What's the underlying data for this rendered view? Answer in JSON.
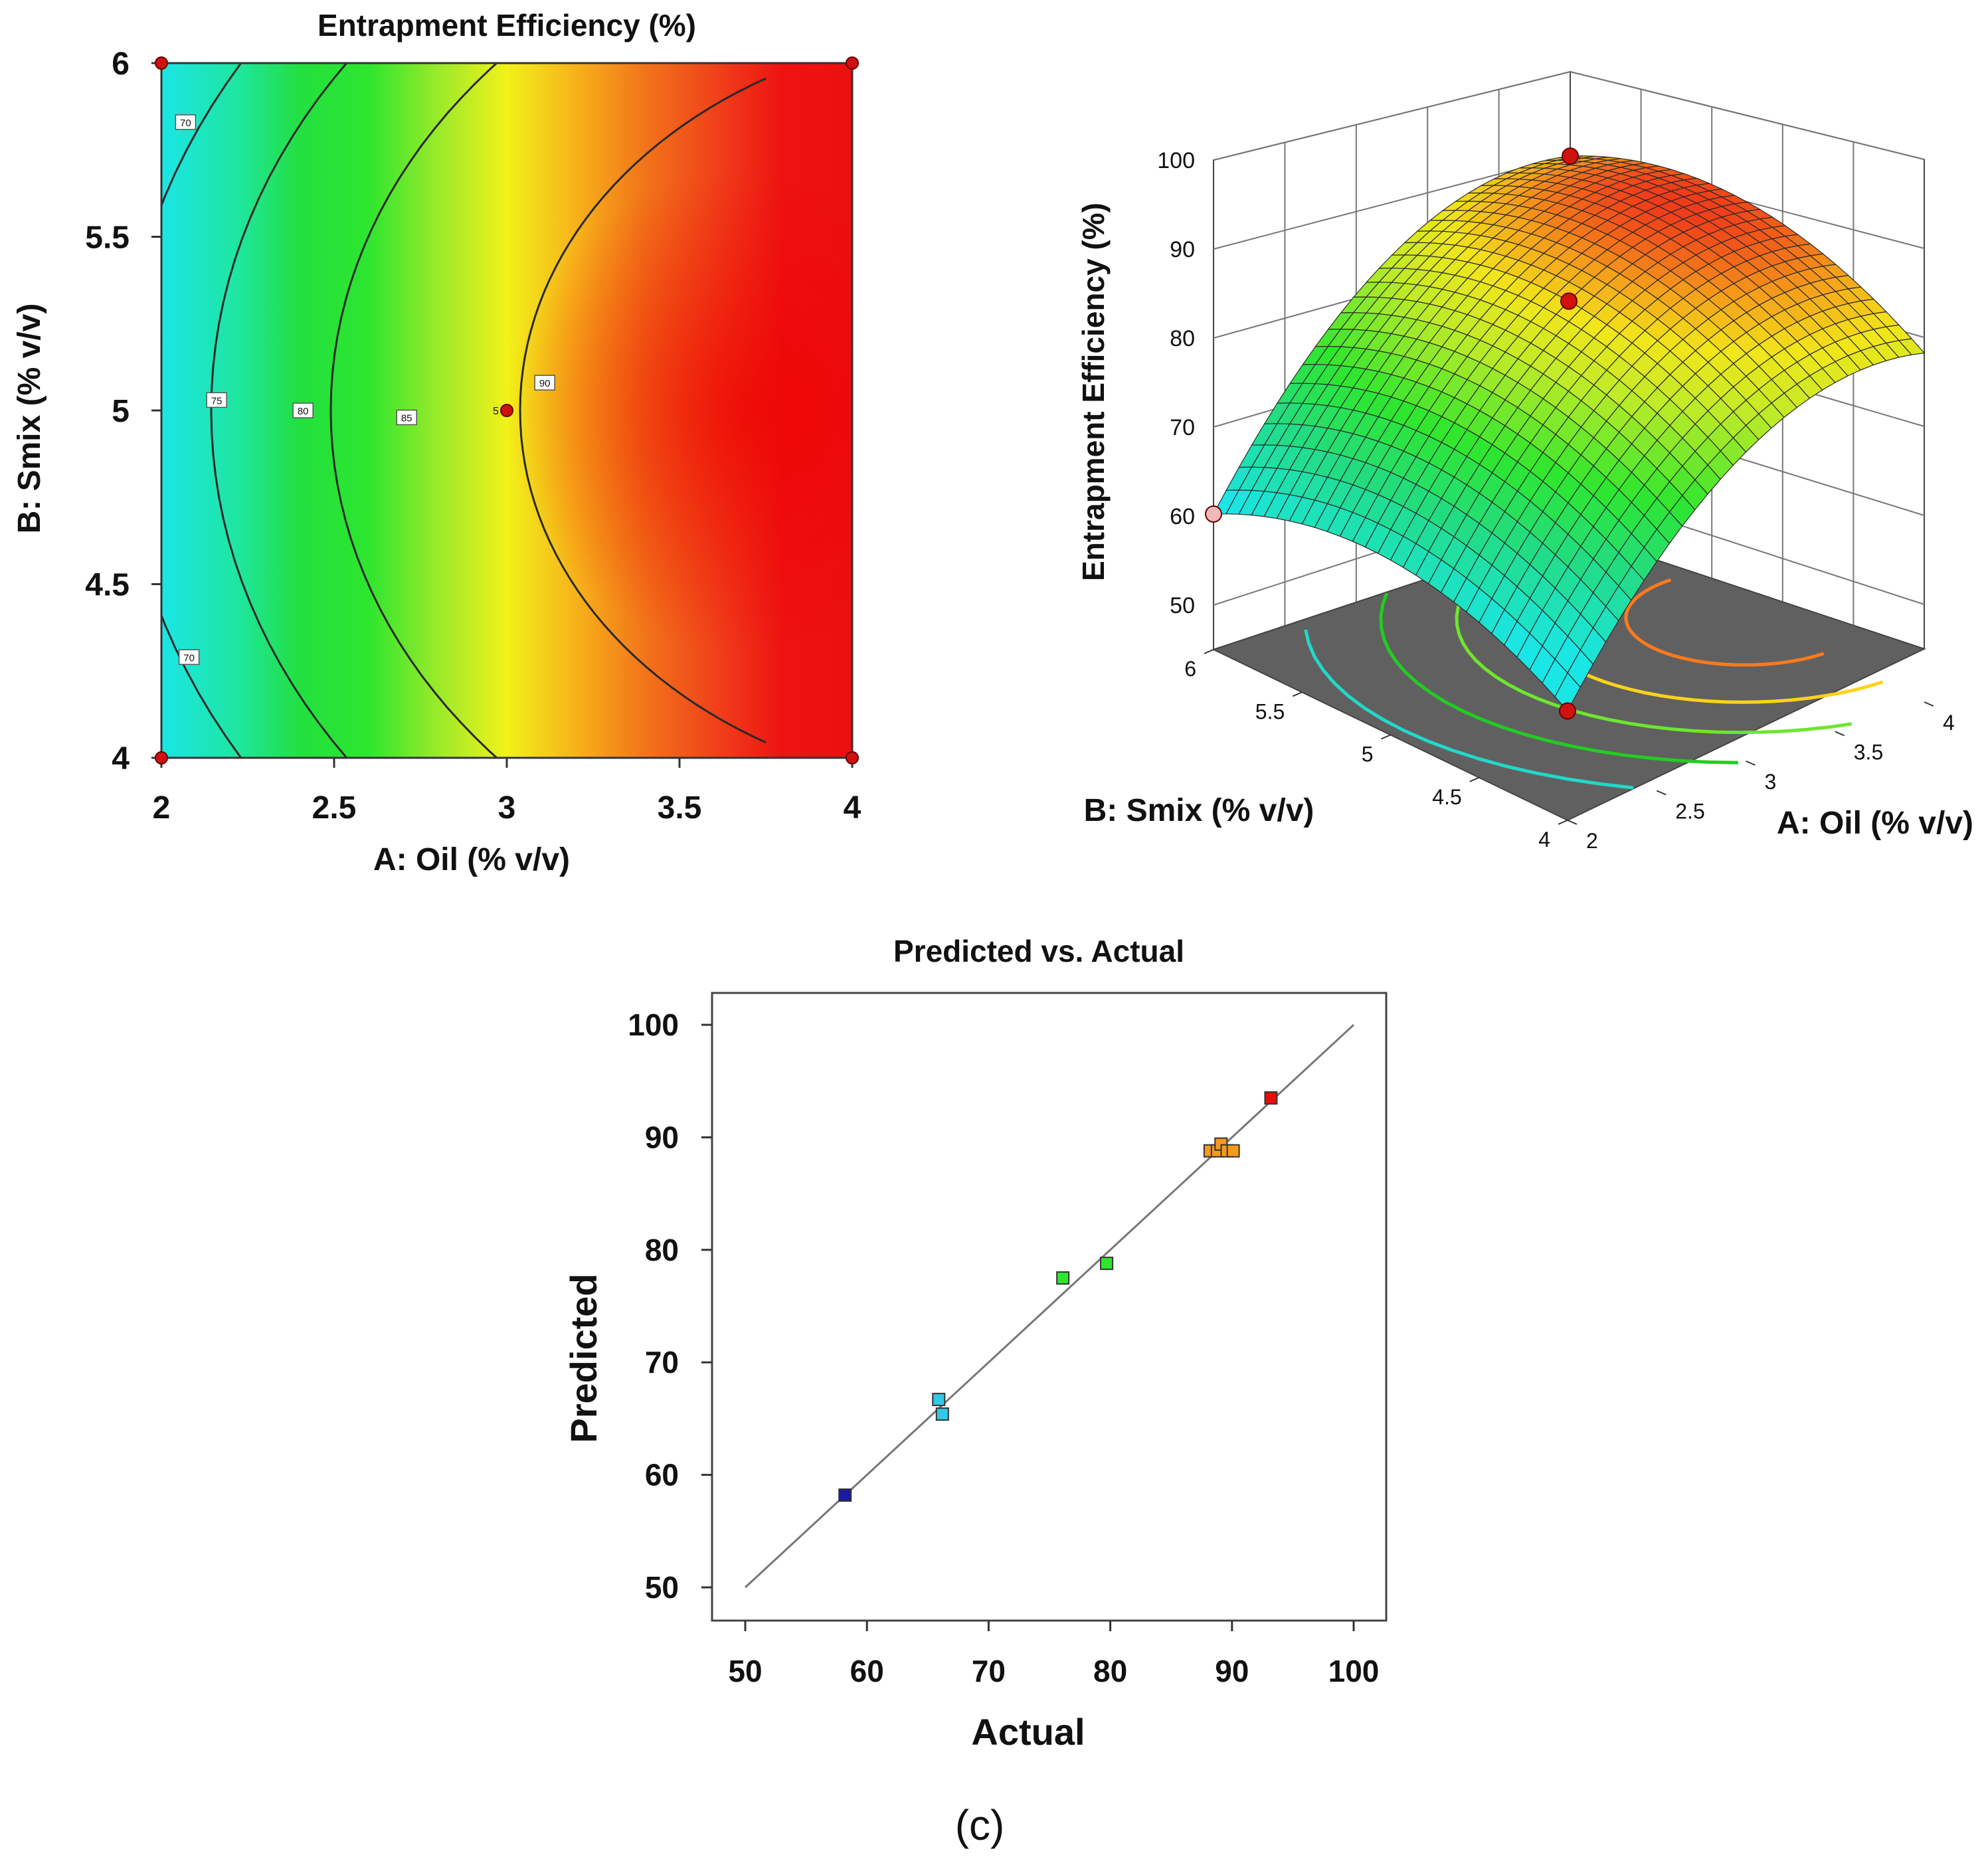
{
  "chart_data": [
    {
      "type": "contour",
      "title": "Entrapment Efficiency (%)",
      "xlabel": "A: Oil (% v/v)",
      "ylabel": "B: Smix (% v/v)",
      "xlim": [
        2,
        4
      ],
      "ylim": [
        4,
        6
      ],
      "xticks": [
        "2",
        "2.5",
        "3",
        "3.5",
        "4"
      ],
      "yticks": [
        "4",
        "4.5",
        "5",
        "5.5",
        "6"
      ],
      "contour_labels": [
        {
          "text": "70",
          "x": 2.07,
          "y": 5.83
        },
        {
          "text": "75",
          "x": 2.16,
          "y": 5.03
        },
        {
          "text": "80",
          "x": 2.41,
          "y": 5.0
        },
        {
          "text": "85",
          "x": 2.71,
          "y": 4.98
        },
        {
          "text": "90",
          "x": 3.11,
          "y": 5.08
        },
        {
          "text": "70",
          "x": 2.08,
          "y": 4.29
        }
      ],
      "center_point": {
        "x": 3.0,
        "y": 5.0,
        "label": "5"
      },
      "design_points": [
        {
          "x": 2,
          "y": 6
        },
        {
          "x": 4,
          "y": 6
        },
        {
          "x": 2,
          "y": 4
        },
        {
          "x": 4,
          "y": 4
        },
        {
          "x": 3,
          "y": 5
        }
      ]
    },
    {
      "type": "surface",
      "zlabel": "Entrapment Efficiency (%)",
      "xlabel": "A: Oil (% v/v)",
      "ylabel": "B: Smix (% v/v)",
      "zticks": [
        "50",
        "60",
        "70",
        "80",
        "90",
        "100"
      ],
      "xticks": [
        "2",
        "2.5",
        "3",
        "3.5",
        "4"
      ],
      "yticks": [
        "4",
        "4.5",
        "5",
        "5.5",
        "6"
      ],
      "zlim": [
        45,
        100
      ]
    },
    {
      "type": "scatter",
      "title": "Predicted vs. Actual",
      "xlabel": "Actual",
      "ylabel": "Predicted",
      "xlim": [
        50,
        100
      ],
      "ylim": [
        50,
        100
      ],
      "xticks": [
        "50",
        "60",
        "70",
        "80",
        "90",
        "100"
      ],
      "yticks": [
        "50",
        "60",
        "70",
        "80",
        "90",
        "100"
      ],
      "reference_line": [
        [
          50,
          50
        ],
        [
          100,
          100
        ]
      ],
      "points": [
        {
          "actual": 58.2,
          "predicted": 58.2,
          "color": "#1a1aa6"
        },
        {
          "actual": 65.9,
          "predicted": 66.7,
          "color": "#33c8e6"
        },
        {
          "actual": 66.2,
          "predicted": 65.4,
          "color": "#33c8e6"
        },
        {
          "actual": 76.1,
          "predicted": 77.5,
          "color": "#2ee62e"
        },
        {
          "actual": 79.7,
          "predicted": 78.8,
          "color": "#2ee62e"
        },
        {
          "actual": 88.2,
          "predicted": 88.8,
          "color": "#f59a1c"
        },
        {
          "actual": 88.8,
          "predicted": 88.8,
          "color": "#f59a1c"
        },
        {
          "actual": 89.1,
          "predicted": 89.4,
          "color": "#f59a1c"
        },
        {
          "actual": 89.6,
          "predicted": 88.8,
          "color": "#f59a1c"
        },
        {
          "actual": 90.1,
          "predicted": 88.8,
          "color": "#f59a1c"
        },
        {
          "actual": 93.2,
          "predicted": 93.5,
          "color": "#e60d0d"
        }
      ]
    }
  ],
  "caption": "(c)"
}
